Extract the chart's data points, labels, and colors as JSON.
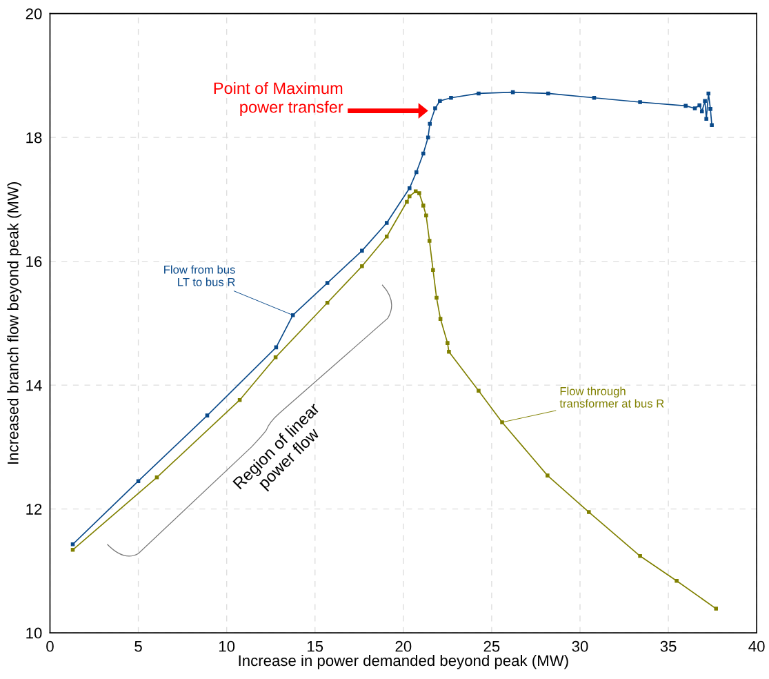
{
  "chart_data": {
    "type": "line",
    "xlabel": "Increase in power demanded beyond peak (MW)",
    "ylabel": "Increased branch flow beyond peak (MW)",
    "xlim": [
      0,
      40
    ],
    "ylim": [
      10,
      20
    ],
    "xticks": [
      0,
      5,
      10,
      15,
      20,
      25,
      30,
      35,
      40
    ],
    "yticks": [
      10,
      12,
      14,
      16,
      18,
      20
    ],
    "grid": true,
    "legend": false,
    "marker": "square",
    "line_style": "solid",
    "series": [
      {
        "name": "Flow from bus\nLT to bus R",
        "color": "#0a4a8a",
        "x": [
          1.29,
          5.0,
          8.9,
          12.8,
          13.75,
          15.7,
          17.66,
          19.06,
          20.35,
          20.74,
          21.13,
          21.4,
          21.5,
          21.8,
          22.07,
          22.7,
          24.26,
          26.2,
          28.2,
          30.8,
          33.4,
          35.98,
          36.5,
          36.76,
          36.9,
          37.07,
          37.15,
          37.27,
          37.38,
          37.46
        ],
        "values": [
          11.43,
          12.45,
          13.51,
          14.61,
          15.13,
          15.65,
          16.17,
          16.62,
          17.18,
          17.44,
          17.74,
          18.0,
          18.22,
          18.47,
          18.59,
          18.64,
          18.71,
          18.73,
          18.71,
          18.64,
          18.57,
          18.51,
          18.47,
          18.52,
          18.42,
          18.59,
          18.3,
          18.71,
          18.46,
          18.2
        ]
      },
      {
        "name": "Flow through\ntransformer at bus R",
        "color": "#808000",
        "x": [
          1.29,
          6.05,
          10.74,
          12.77,
          15.7,
          17.66,
          19.06,
          20.2,
          20.35,
          20.7,
          20.9,
          21.13,
          21.29,
          21.48,
          21.68,
          21.88,
          22.1,
          22.5,
          22.58,
          24.26,
          25.59,
          28.16,
          30.5,
          33.4,
          35.47,
          37.7
        ],
        "values": [
          11.34,
          12.51,
          13.76,
          14.45,
          15.33,
          15.92,
          16.4,
          16.96,
          17.05,
          17.13,
          17.1,
          16.9,
          16.74,
          16.33,
          15.86,
          15.41,
          15.07,
          14.68,
          14.54,
          13.91,
          13.4,
          12.54,
          11.95,
          11.24,
          10.84,
          10.39
        ]
      }
    ],
    "annotations": [
      "Point of Maximum\npower transfer",
      "Region of linear\npower flow"
    ]
  }
}
